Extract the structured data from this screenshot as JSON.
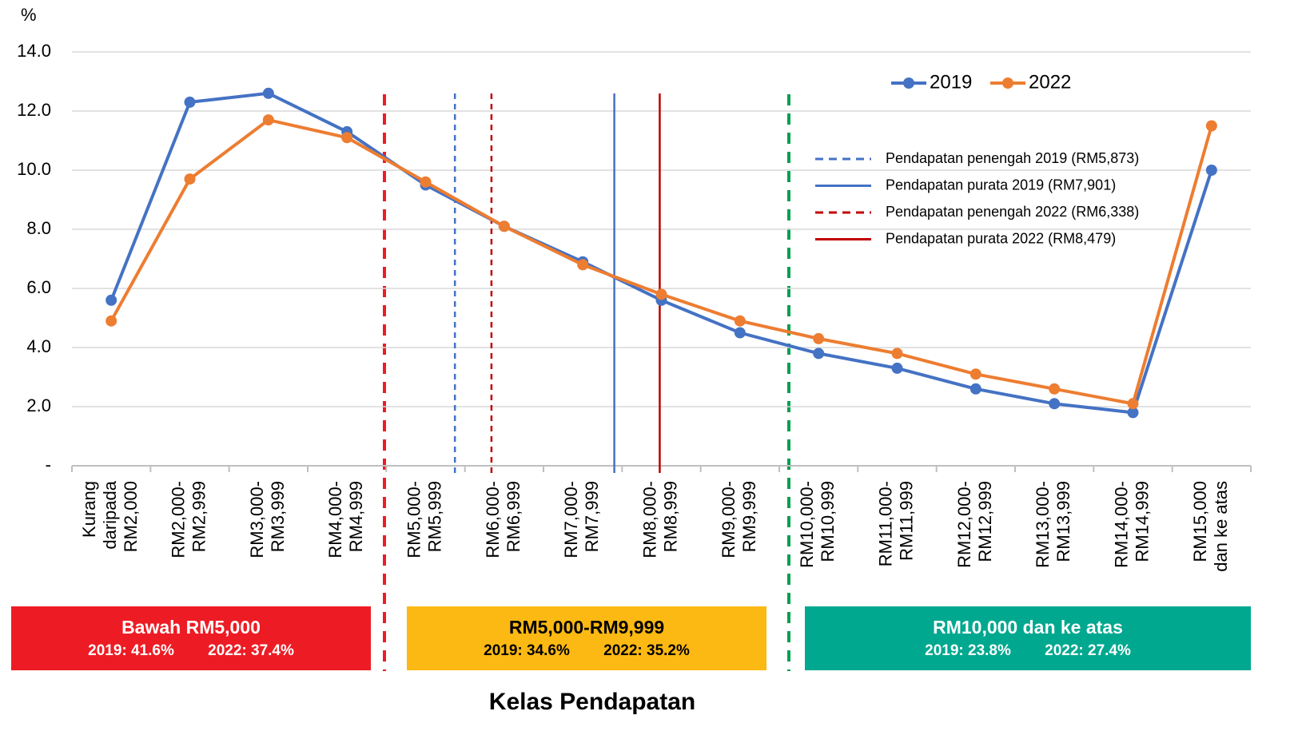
{
  "chart_data": {
    "type": "line",
    "y_label": "%",
    "x_label": "Kelas Pendapatan",
    "categories": [
      "Kurang\ndaripada\nRM2,000",
      "RM2,000-\nRM2,999",
      "RM3,000-\nRM3,999",
      "RM4,000-\nRM4,999",
      "RM5,000-\nRM5,999",
      "RM6,000-\nRM6,999",
      "RM7,000-\nRM7,999",
      "RM8,000-\nRM8,999",
      "RM9,000-\nRM9,999",
      "RM10,000-\nRM10,999",
      "RM11,000-\nRM11,999",
      "RM12,000-\nRM12,999",
      "RM13,000-\nRM13,999",
      "RM14,000-\nRM14,999",
      "RM15,000\ndan ke atas"
    ],
    "series": [
      {
        "name": "2019",
        "color": "#4472c4",
        "values": [
          5.6,
          12.3,
          12.6,
          11.3,
          9.5,
          8.1,
          6.9,
          5.6,
          4.5,
          3.8,
          3.3,
          2.6,
          2.1,
          1.8,
          10.0
        ]
      },
      {
        "name": "2022",
        "color": "#ed7d31",
        "values": [
          4.9,
          9.7,
          11.7,
          11.1,
          9.6,
          8.1,
          6.8,
          5.8,
          4.9,
          4.3,
          3.8,
          3.1,
          2.6,
          2.1,
          11.5
        ]
      }
    ],
    "ylim": [
      0,
      14
    ],
    "yticks": [
      {
        "value": 0,
        "label": "-"
      },
      {
        "value": 2,
        "label": "2.0"
      },
      {
        "value": 4,
        "label": "4.0"
      },
      {
        "value": 6,
        "label": "6.0"
      },
      {
        "value": 8,
        "label": "8.0"
      },
      {
        "value": 10,
        "label": "10.0"
      },
      {
        "value": 12,
        "label": "12.0"
      },
      {
        "value": 14,
        "label": "14.0"
      }
    ],
    "grid": true,
    "reference_lines": [
      {
        "name": "Pendapatan penengah 2019 (RM5,873)",
        "x": 5873,
        "color": "#4472c4",
        "dashed": true
      },
      {
        "name": "Pendapatan purata 2019 (RM7,901)",
        "x": 7901,
        "color": "#4472c4",
        "dashed": false
      },
      {
        "name": "Pendapatan penengah 2022 (RM6,338)",
        "x": 6338,
        "color": "#c00000",
        "dashed": true
      },
      {
        "name": "Pendapatan purata 2022 (RM8,479)",
        "x": 8479,
        "color": "#c00000",
        "dashed": false
      }
    ],
    "groups": [
      {
        "name": "Bawah RM5,000",
        "color": "#ed1c24",
        "text_color": "#ffffff",
        "stats": [
          "2019: 41.6%",
          "2022: 37.4%"
        ]
      },
      {
        "name": "RM5,000-RM9,999",
        "color": "#fdb913",
        "text_color": "#000000",
        "stats": [
          "2019: 34.6%",
          "2022: 35.2%"
        ]
      },
      {
        "name": "RM10,000 dan ke atas",
        "color": "#00a88f",
        "text_color": "#ffffff",
        "stats": [
          "2019: 23.8%",
          "2022: 27.4%"
        ]
      }
    ]
  }
}
